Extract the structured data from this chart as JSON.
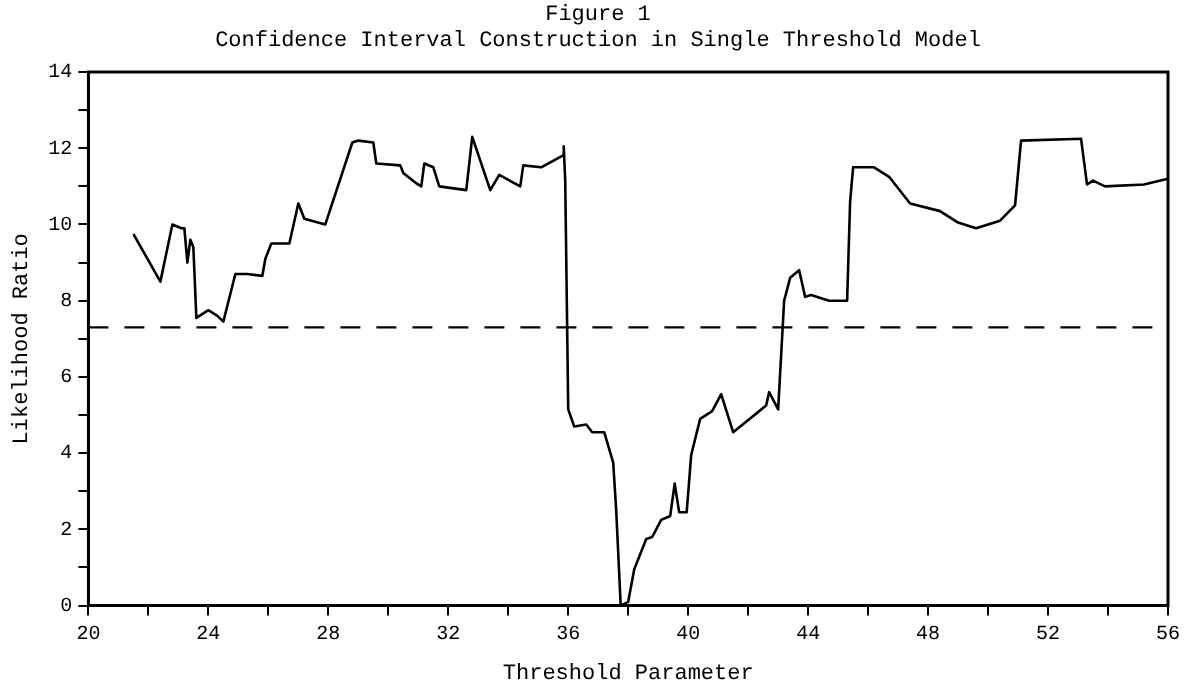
{
  "chart_data": {
    "type": "line",
    "title": "Figure 1",
    "subtitle": "Confidence Interval Construction in Single Threshold Model",
    "xlabel": "Threshold Parameter",
    "ylabel": "Likelihood Ratio",
    "xlim": [
      20,
      56
    ],
    "xticks": [
      20,
      {
        "value": 22,
        "label": null
      },
      24,
      {
        "value": 26,
        "label": null
      },
      28,
      {
        "value": 30,
        "label": null
      },
      32,
      {
        "value": 34,
        "label": null
      },
      36,
      {
        "value": 38,
        "label": null
      },
      40,
      {
        "value": 42,
        "label": null
      },
      44,
      {
        "value": 46,
        "label": null
      },
      48,
      {
        "value": 50,
        "label": null
      },
      52,
      {
        "value": 54,
        "label": null
      },
      56
    ],
    "ylim": [
      0,
      14
    ],
    "yticks": [
      0,
      {
        "value": 1,
        "label": null
      },
      2,
      {
        "value": 3,
        "label": null
      },
      4,
      {
        "value": 5,
        "label": null
      },
      6,
      {
        "value": 7,
        "label": null
      },
      8,
      {
        "value": 9,
        "label": null
      },
      10,
      {
        "value": 11,
        "label": null
      },
      12,
      {
        "value": 13,
        "label": null
      },
      14
    ],
    "grid": false,
    "legend": false,
    "marker": "none",
    "line_style": "solid",
    "ref_lines": [
      {
        "axis": "y",
        "value": 7.3,
        "color": "#000000",
        "line_style": "dashed"
      }
    ],
    "series": [
      {
        "color": "#000000",
        "x": [
          21.5,
          22.4,
          22.8,
          23.1,
          23.2,
          23.3,
          23.4,
          23.5,
          23.6,
          24.0,
          24.3,
          24.5,
          24.9,
          25.3,
          25.8,
          25.9,
          26.1,
          26.7,
          27.0,
          27.2,
          27.9,
          28.8,
          29.0,
          29.5,
          29.6,
          30.4,
          30.5,
          30.9,
          31.1,
          31.2,
          31.5,
          31.7,
          32.6,
          32.8,
          33.4,
          33.7,
          34.4,
          34.5,
          35.1,
          35.8,
          35.85,
          35.9,
          36.0,
          36.2,
          36.6,
          36.8,
          37.2,
          37.5,
          37.6,
          37.75,
          38.0,
          38.2,
          38.6,
          38.8,
          39.1,
          39.4,
          39.55,
          39.7,
          39.95,
          40.1,
          40.4,
          40.8,
          41.1,
          41.5,
          42.6,
          42.7,
          43.0,
          43.2,
          43.4,
          43.7,
          43.9,
          44.1,
          44.7,
          45.3,
          45.4,
          45.5,
          46.2,
          46.7,
          47.4,
          48.4,
          49.0,
          49.6,
          50.4,
          50.9,
          51.1,
          53.1,
          53.3,
          53.5,
          53.9,
          55.2,
          56.0
        ],
        "values": [
          9.75,
          8.5,
          10.0,
          9.9,
          9.9,
          9.0,
          9.6,
          9.4,
          7.55,
          7.75,
          7.6,
          7.45,
          8.7,
          8.7,
          8.65,
          9.1,
          9.5,
          9.5,
          10.55,
          10.15,
          10.0,
          12.15,
          12.2,
          12.15,
          11.6,
          11.55,
          11.35,
          11.1,
          11.0,
          11.6,
          11.5,
          11.0,
          10.9,
          12.3,
          10.9,
          11.3,
          11.0,
          11.55,
          11.5,
          11.8,
          12.05,
          11.15,
          5.15,
          4.7,
          4.75,
          4.55,
          4.55,
          3.75,
          2.5,
          0,
          0.1,
          0.95,
          1.75,
          1.8,
          2.25,
          2.35,
          3.2,
          2.45,
          2.45,
          3.95,
          4.9,
          5.1,
          5.55,
          4.55,
          5.25,
          5.6,
          5.15,
          8.0,
          8.6,
          8.8,
          8.1,
          8.15,
          8.0,
          8.0,
          10.6,
          11.5,
          11.5,
          11.25,
          10.55,
          10.35,
          10.05,
          9.9,
          10.1,
          10.5,
          12.2,
          12.25,
          11.05,
          11.15,
          11.0,
          11.05,
          11.2
        ]
      }
    ]
  }
}
